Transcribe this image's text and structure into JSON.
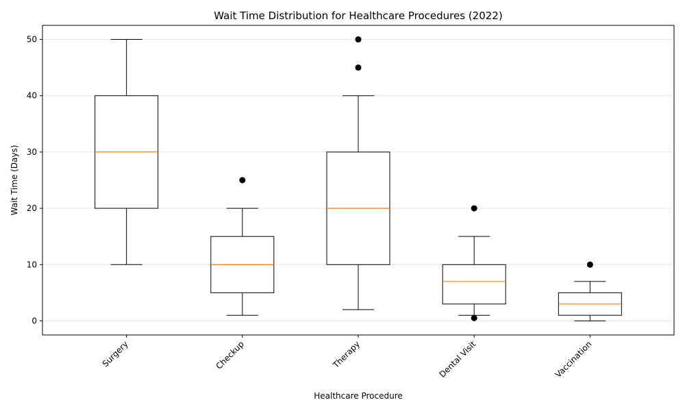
{
  "chart_data": {
    "type": "box",
    "title": "Wait Time Distribution for Healthcare Procedures (2022)",
    "xlabel": "Healthcare Procedure",
    "ylabel": "Wait Time (Days)",
    "ylim": [
      -2.5,
      52.5
    ],
    "yticks": [
      0,
      10,
      20,
      30,
      40,
      50
    ],
    "grid": "y",
    "categories": [
      "Surgery",
      "Checkup",
      "Therapy",
      "Dental Visit",
      "Vaccination"
    ],
    "boxes": [
      {
        "category": "Surgery",
        "whisker_low": 10,
        "q1": 20,
        "median": 30,
        "q3": 40,
        "whisker_high": 50,
        "outliers": []
      },
      {
        "category": "Checkup",
        "whisker_low": 1,
        "q1": 5,
        "median": 10,
        "q3": 15,
        "whisker_high": 20,
        "outliers": [
          25
        ]
      },
      {
        "category": "Therapy",
        "whisker_low": 2,
        "q1": 10,
        "median": 20,
        "q3": 30,
        "whisker_high": 40,
        "outliers": [
          45,
          50
        ]
      },
      {
        "category": "Dental Visit",
        "whisker_low": 1,
        "q1": 3,
        "median": 7,
        "q3": 10,
        "whisker_high": 15,
        "outliers": [
          0.5,
          20
        ]
      },
      {
        "category": "Vaccination",
        "whisker_low": 0,
        "q1": 1,
        "median": 3,
        "q3": 5,
        "whisker_high": 7,
        "outliers": [
          10
        ]
      }
    ],
    "colors": {
      "box": "#000000",
      "median": "#ff7f0e",
      "outlier": "#000000",
      "grid": "#e6e6e6"
    }
  }
}
